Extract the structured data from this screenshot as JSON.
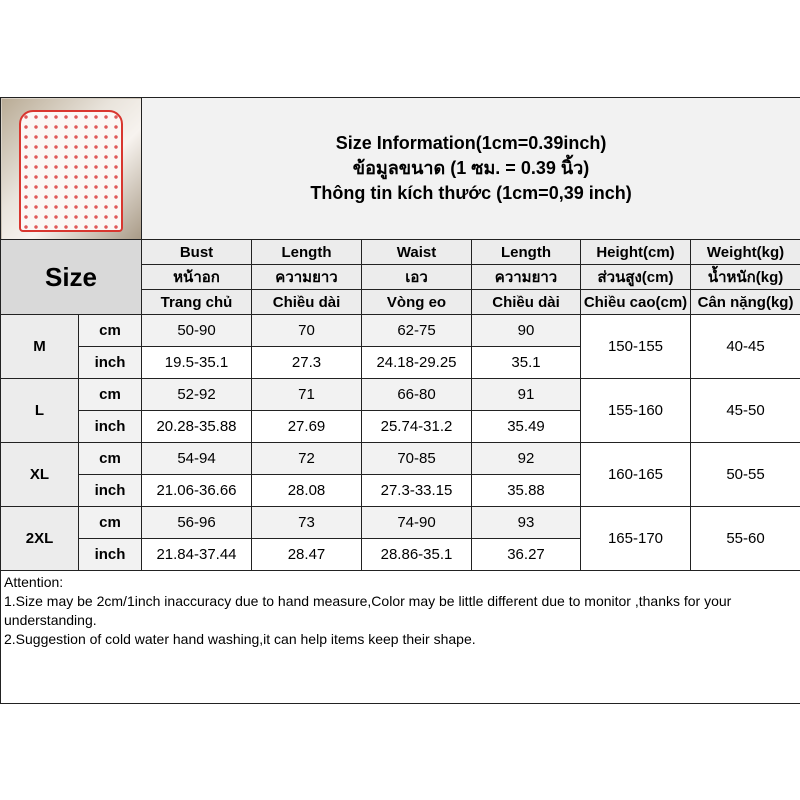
{
  "title_lines": [
    "Size Information(1cm=0.39inch)",
    "ข้อมูลขนาด (1 ซม. = 0.39 นิ้ว)",
    "Thông tin kích thước (1cm=0,39 inch)"
  ],
  "size_label": "Size",
  "headers": [
    [
      "Bust",
      "หน้าอก",
      "Trang chủ"
    ],
    [
      "Length",
      "ความยาว",
      "Chiều dài"
    ],
    [
      "Waist",
      "เอว",
      "Vòng eo"
    ],
    [
      "Length",
      "ความยาว",
      "Chiều dài"
    ],
    [
      "Height(cm)",
      "ส่วนสูง(cm)",
      "Chiều cao(cm)"
    ],
    [
      "Weight(kg)",
      "น้ำหนัก(kg)",
      "Cân nặng(kg)"
    ]
  ],
  "units": [
    "cm",
    "inch"
  ],
  "rows": [
    {
      "size": "M",
      "cm": [
        "50-90",
        "70",
        "62-75",
        "90"
      ],
      "inch": [
        "19.5-35.1",
        "27.3",
        "24.18-29.25",
        "35.1"
      ],
      "height": "150-155",
      "weight": "40-45"
    },
    {
      "size": "L",
      "cm": [
        "52-92",
        "71",
        "66-80",
        "91"
      ],
      "inch": [
        "20.28-35.88",
        "27.69",
        "25.74-31.2",
        "35.49"
      ],
      "height": "155-160",
      "weight": "45-50"
    },
    {
      "size": "XL",
      "cm": [
        "54-94",
        "72",
        "70-85",
        "92"
      ],
      "inch": [
        "21.06-36.66",
        "28.08",
        "27.3-33.15",
        "35.88"
      ],
      "height": "160-165",
      "weight": "50-55"
    },
    {
      "size": "2XL",
      "cm": [
        "56-96",
        "73",
        "74-90",
        "93"
      ],
      "inch": [
        "21.84-37.44",
        "28.47",
        "28.86-35.1",
        "36.27"
      ],
      "height": "165-170",
      "weight": "55-60"
    }
  ],
  "attention": [
    "Attention:",
    "1.Size may be 2cm/1inch inaccuracy due to hand measure,Color may be little different due to monitor ,thanks for your understanding.",
    "2.Suggestion of cold water hand washing,it can help items keep their shape."
  ]
}
